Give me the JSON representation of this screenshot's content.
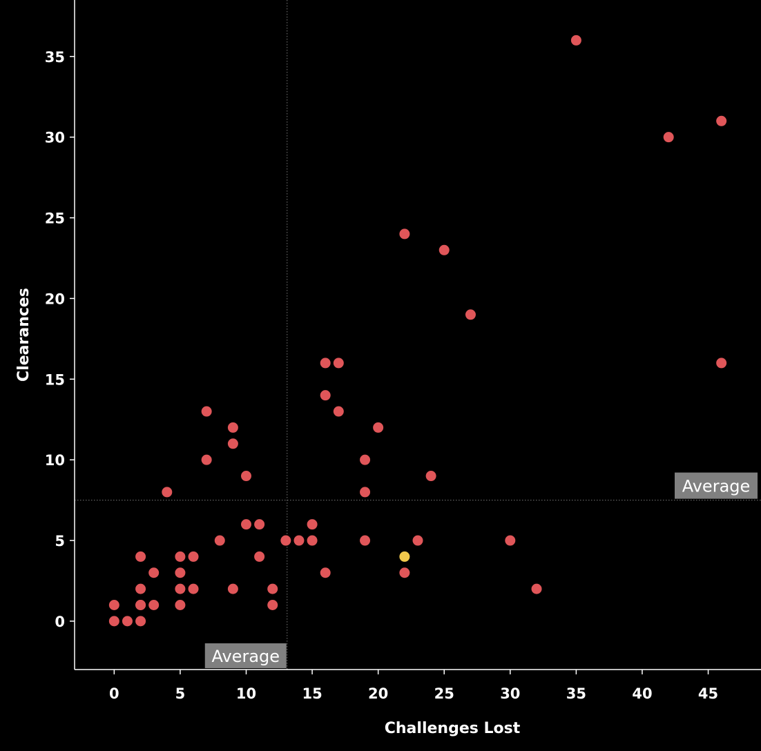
{
  "chart_data": {
    "type": "scatter",
    "xlabel": "Challenges Lost",
    "ylabel": "Clearances",
    "xlim": [
      -3,
      49
    ],
    "ylim": [
      -3,
      38.5
    ],
    "x_ticks": [
      0,
      5,
      10,
      15,
      20,
      25,
      30,
      35,
      40,
      45
    ],
    "y_ticks": [
      0,
      5,
      10,
      15,
      20,
      25,
      30,
      35
    ],
    "grid": false,
    "colors": {
      "background": "#000000",
      "point": "#e05659",
      "highlight": "#f2c94c",
      "axis": "#ffffff",
      "reference_line": "#7a7a7a",
      "label_box": "#808080"
    },
    "reference_lines": [
      {
        "axis": "x",
        "value": 13.1,
        "label": "Average"
      },
      {
        "axis": "y",
        "value": 7.5,
        "label": "Average"
      }
    ],
    "points": [
      {
        "x": 0,
        "y": 0
      },
      {
        "x": 0,
        "y": 1
      },
      {
        "x": 1,
        "y": 0
      },
      {
        "x": 2,
        "y": 0
      },
      {
        "x": 2,
        "y": 1
      },
      {
        "x": 2,
        "y": 1
      },
      {
        "x": 2,
        "y": 2
      },
      {
        "x": 2,
        "y": 4
      },
      {
        "x": 3,
        "y": 1
      },
      {
        "x": 3,
        "y": 3
      },
      {
        "x": 4,
        "y": 8
      },
      {
        "x": 5,
        "y": 1
      },
      {
        "x": 5,
        "y": 2
      },
      {
        "x": 5,
        "y": 3
      },
      {
        "x": 5,
        "y": 4
      },
      {
        "x": 6,
        "y": 2
      },
      {
        "x": 6,
        "y": 4
      },
      {
        "x": 7,
        "y": 10
      },
      {
        "x": 7,
        "y": 13
      },
      {
        "x": 8,
        "y": 5
      },
      {
        "x": 9,
        "y": 2
      },
      {
        "x": 9,
        "y": 11
      },
      {
        "x": 9,
        "y": 12
      },
      {
        "x": 10,
        "y": 6
      },
      {
        "x": 10,
        "y": 9
      },
      {
        "x": 11,
        "y": 4
      },
      {
        "x": 11,
        "y": 6
      },
      {
        "x": 12,
        "y": 1
      },
      {
        "x": 12,
        "y": 2
      },
      {
        "x": 13,
        "y": 5
      },
      {
        "x": 14,
        "y": 5
      },
      {
        "x": 15,
        "y": 5
      },
      {
        "x": 15,
        "y": 6
      },
      {
        "x": 16,
        "y": 3
      },
      {
        "x": 16,
        "y": 14
      },
      {
        "x": 16,
        "y": 16
      },
      {
        "x": 17,
        "y": 13
      },
      {
        "x": 17,
        "y": 16
      },
      {
        "x": 19,
        "y": 5
      },
      {
        "x": 19,
        "y": 8
      },
      {
        "x": 19,
        "y": 10
      },
      {
        "x": 20,
        "y": 12
      },
      {
        "x": 22,
        "y": 3
      },
      {
        "x": 22,
        "y": 24
      },
      {
        "x": 23,
        "y": 5
      },
      {
        "x": 24,
        "y": 9
      },
      {
        "x": 25,
        "y": 23
      },
      {
        "x": 27,
        "y": 19
      },
      {
        "x": 30,
        "y": 5
      },
      {
        "x": 32,
        "y": 2
      },
      {
        "x": 35,
        "y": 36
      },
      {
        "x": 42,
        "y": 30
      },
      {
        "x": 46,
        "y": 16
      },
      {
        "x": 46,
        "y": 31
      },
      {
        "x": 22,
        "y": 4,
        "highlight": true
      }
    ]
  }
}
